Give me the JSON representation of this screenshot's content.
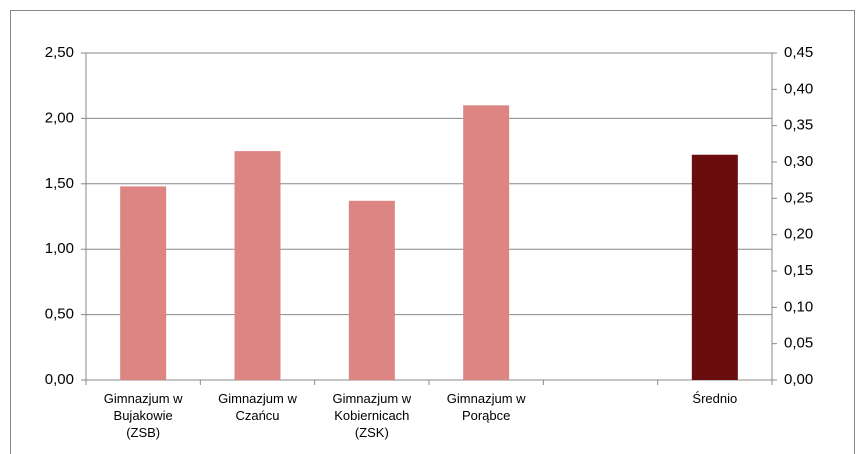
{
  "chart_data": {
    "type": "bar",
    "categories": [
      "Gimnazjum w\nBujakowie\n(ZSB)",
      "Gimnazjum w\nCzańcu",
      "Gimnazjum w\nKobiernicach\n(ZSK)",
      "Gimnazjum w\nPorąbce",
      null,
      "Średnio"
    ],
    "series": [
      {
        "color": "#dc8583",
        "values": [
          1.48,
          1.75,
          1.37,
          2.1,
          null,
          null
        ]
      },
      {
        "color": "#6b0c0e",
        "axis": "y2",
        "values": [
          null,
          null,
          null,
          null,
          null,
          0.31
        ]
      }
    ],
    "ylim": [
      0,
      2.5
    ],
    "yticks": [
      {
        "value": 0,
        "label": "0,00"
      },
      {
        "value": 0.5,
        "label": "0,50"
      },
      {
        "value": 1,
        "label": "1,00"
      },
      {
        "value": 1.5,
        "label": "1,50"
      },
      {
        "value": 2,
        "label": "2,00"
      },
      {
        "value": 2.5,
        "label": "2,50"
      }
    ],
    "y2lim": [
      0,
      0.45
    ],
    "y2ticks": [
      {
        "value": 0,
        "label": "0,00"
      },
      {
        "value": 0.05,
        "label": "0,05"
      },
      {
        "value": 0.1,
        "label": "0,10"
      },
      {
        "value": 0.15,
        "label": "0,15"
      },
      {
        "value": 0.2,
        "label": "0,20"
      },
      {
        "value": 0.25,
        "label": "0,25"
      },
      {
        "value": 0.3,
        "label": "0,30"
      },
      {
        "value": 0.35,
        "label": "0,35"
      },
      {
        "value": 0.4,
        "label": "0,40"
      },
      {
        "value": 0.45,
        "label": "0,45"
      }
    ],
    "grid": true
  }
}
